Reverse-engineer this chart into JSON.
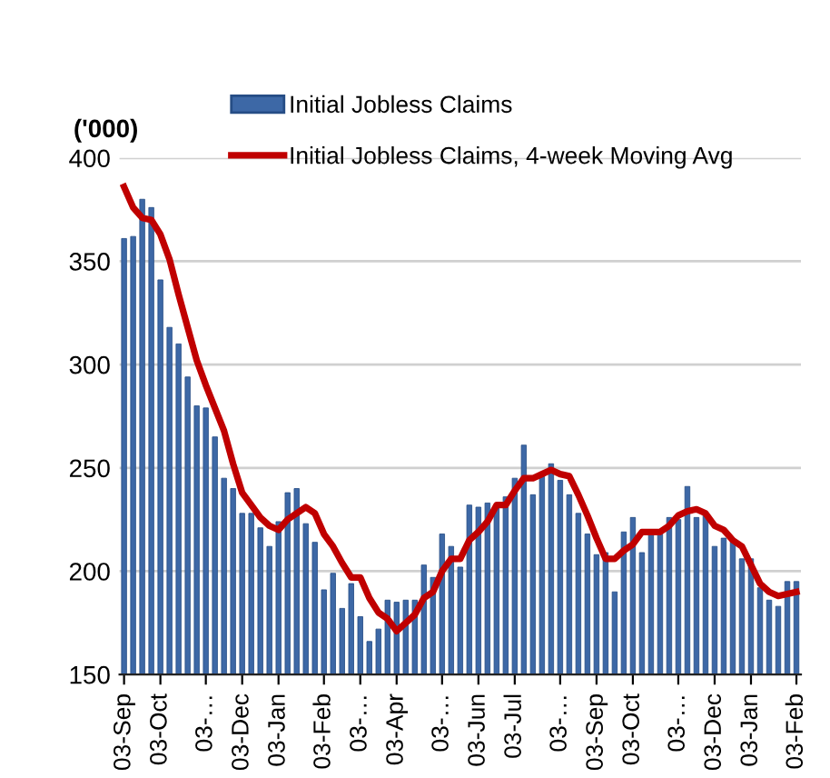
{
  "chart_data": {
    "type": "bar",
    "ylabel": "('000)",
    "categories": [
      "03-Sep",
      null,
      null,
      null,
      "03-Oct",
      null,
      null,
      null,
      null,
      "03-…",
      null,
      null,
      null,
      "03-Dec",
      null,
      null,
      null,
      "03-Jan",
      null,
      null,
      null,
      null,
      "03-Feb",
      null,
      null,
      null,
      "03-…",
      null,
      null,
      null,
      "03-Apr",
      null,
      null,
      null,
      null,
      "03-…",
      null,
      null,
      null,
      "03-Jun",
      null,
      null,
      null,
      "03-Jul",
      null,
      null,
      null,
      null,
      "03-…",
      null,
      null,
      null,
      "03-Sep",
      null,
      null,
      null,
      "03-Oct",
      null,
      null,
      null,
      null,
      "03-…",
      null,
      null,
      null,
      "03-Dec",
      null,
      null,
      null,
      "03-Jan",
      null,
      null,
      null,
      null,
      "03-Feb"
    ],
    "series": [
      {
        "name": "Initial Jobless Claims",
        "color": "#3d68a6",
        "values": [
          361,
          362,
          380,
          376,
          341,
          318,
          310,
          294,
          280,
          279,
          265,
          245,
          240,
          228,
          228,
          221,
          212,
          224,
          238,
          240,
          223,
          214,
          191,
          199,
          182,
          194,
          178,
          166,
          172,
          186,
          185,
          186,
          186,
          203,
          197,
          218,
          212,
          202,
          232,
          231,
          233,
          232,
          236,
          245,
          261,
          237,
          247,
          252,
          244,
          237,
          228,
          218,
          208,
          209,
          190,
          219,
          226,
          209,
          218,
          218,
          226,
          225,
          241,
          226,
          228,
          212,
          216,
          215,
          206,
          206,
          192,
          186,
          183,
          195,
          195
        ]
      },
      {
        "name": "Initial Jobless Claims, 4-week Moving Avg",
        "type": "line",
        "color": "#c00000",
        "values": [
          386,
          376,
          371,
          370,
          363,
          351,
          334,
          318,
          302,
          290,
          279,
          268,
          252,
          238,
          232,
          226,
          222,
          220,
          225,
          228,
          231,
          228,
          218,
          212,
          204,
          197,
          197,
          187,
          180,
          177,
          171,
          175,
          179,
          187,
          190,
          200,
          206,
          206,
          215,
          219,
          224,
          232,
          232,
          239,
          245,
          245,
          247,
          249,
          247,
          246,
          237,
          227,
          216,
          206,
          206,
          210,
          213,
          219,
          219,
          219,
          222,
          227,
          229,
          230,
          228,
          222,
          220,
          215,
          212,
          203,
          194,
          190,
          188,
          189,
          190
        ]
      }
    ],
    "ylim": [
      150,
      400
    ],
    "yticks": [
      150,
      200,
      250,
      300,
      350,
      400
    ],
    "grid": "y",
    "legend": "top",
    "line_style": "solid",
    "marker": "none"
  }
}
